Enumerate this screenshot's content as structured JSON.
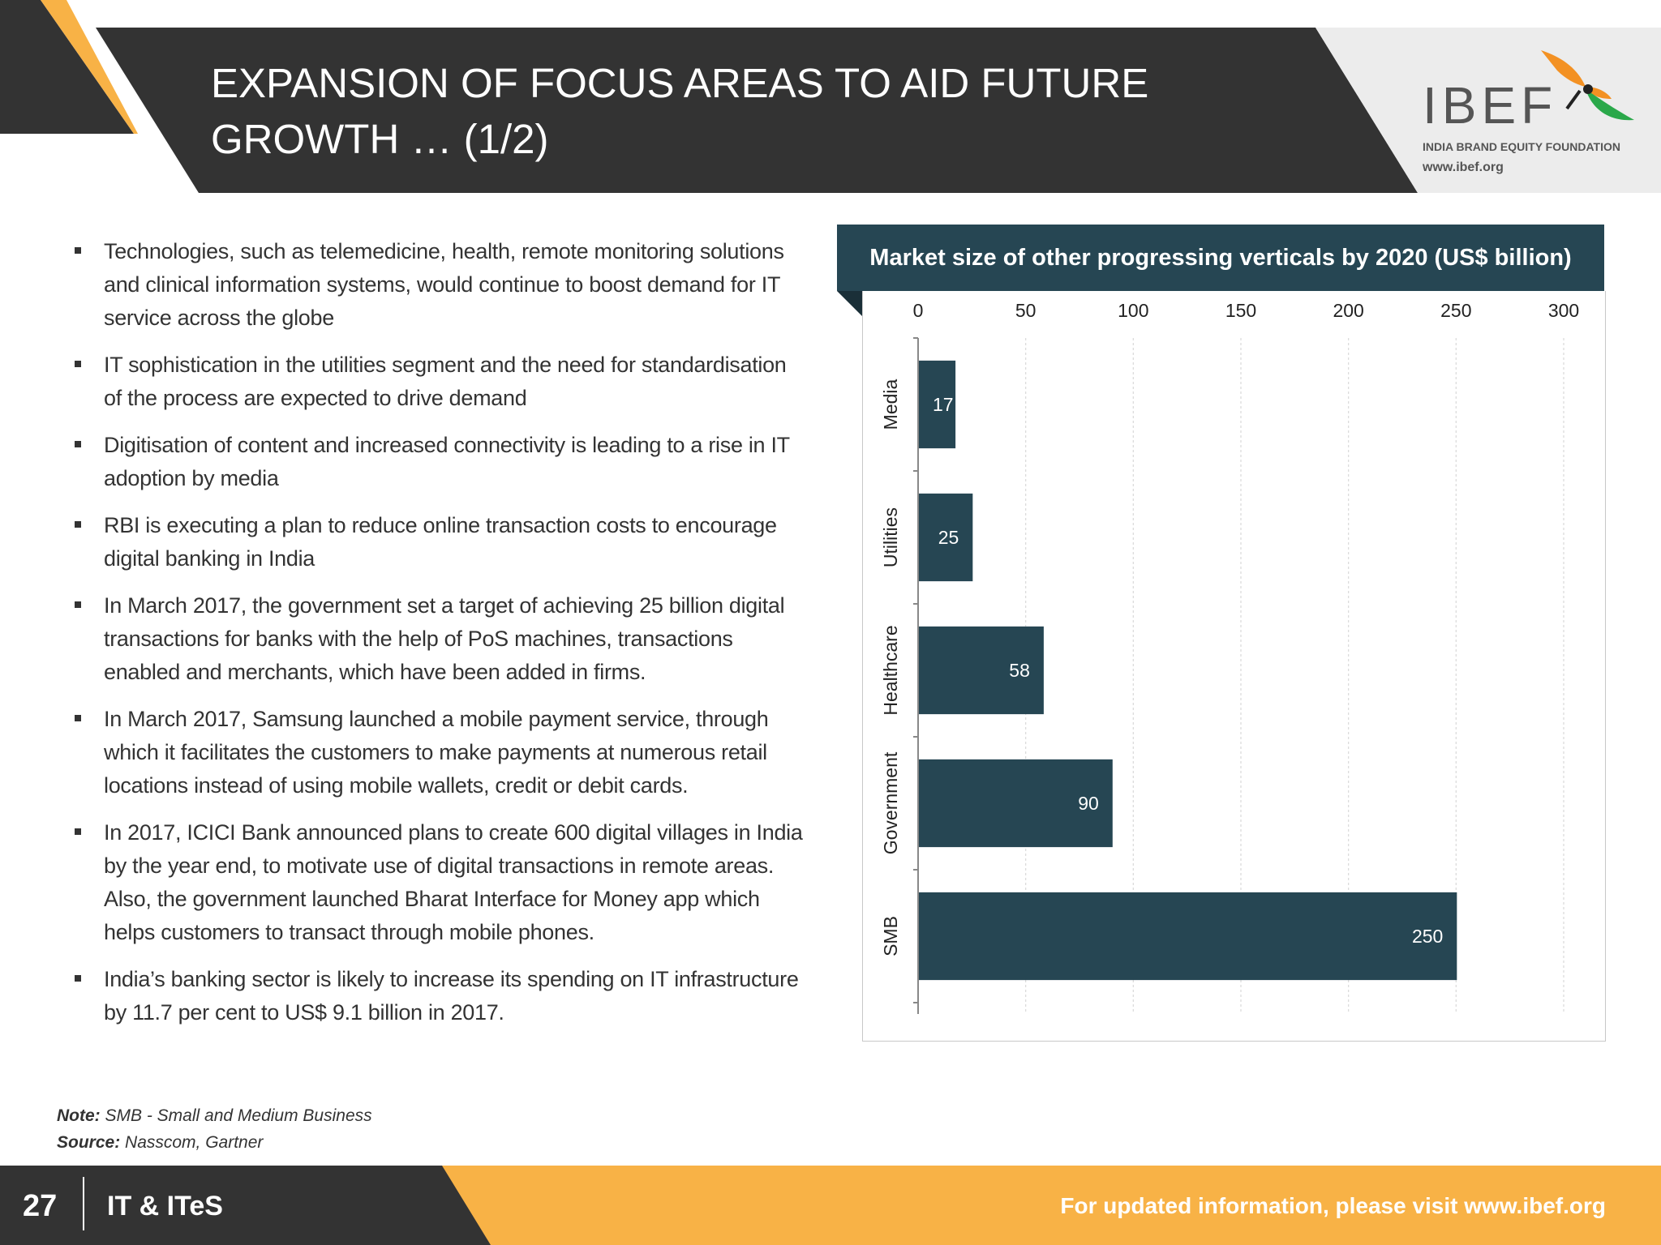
{
  "header": {
    "title": "EXPANSION OF FOCUS AREAS TO AID FUTURE GROWTH … (1/2)"
  },
  "logo": {
    "name": "IBEF",
    "tagline": "INDIA BRAND EQUITY FOUNDATION",
    "url": "www.ibef.org"
  },
  "bullets": [
    "Technologies, such as telemedicine, health, remote monitoring solutions and clinical information systems, would continue to boost demand for IT service across the globe",
    "IT sophistication in the utilities segment and the need for standardisation of the process are expected to drive demand",
    "Digitisation of content and increased connectivity is leading to a rise in IT adoption by media",
    "RBI is executing a plan to reduce online transaction costs to encourage digital banking in India",
    "In March 2017, the government set a target of achieving 25 billion digital transactions for banks with the help of PoS machines, transactions enabled and merchants, which have been added in firms.",
    "In March 2017, Samsung launched a mobile payment service, through which it facilitates the customers to make payments at numerous retail locations instead of using mobile wallets, credit or debit cards.",
    "In 2017, ICICI Bank announced plans to create 600 digital villages in India by the year end, to motivate use of digital transactions in remote areas. Also, the government launched Bharat Interface for Money app which helps customers to transact through mobile phones.",
    "India’s banking sector is likely to increase its spending on IT infrastructure  by 11.7 per cent to US$ 9.1 billion in 2017."
  ],
  "chart_data": {
    "type": "bar",
    "orientation": "horizontal",
    "title": "Market size of other progressing verticals by 2020 (US$ billion)",
    "categories": [
      "Media",
      "Utilities",
      "Healthcare",
      "Government",
      "SMB"
    ],
    "values": [
      17,
      25,
      58,
      90,
      250
    ],
    "xlim": [
      0,
      300
    ],
    "xticks": [
      0,
      50,
      100,
      150,
      200,
      250,
      300
    ],
    "xaxis_position": "top",
    "grid": "vertical dashed",
    "bar_color": "#264653",
    "data_labels": true
  },
  "notes": {
    "note_label": "Note:",
    "note_text": " SMB - Small and Medium Business",
    "source_label": "Source:",
    "source_text": " Nasscom, Gartner"
  },
  "footer": {
    "page_number": "27",
    "section": "IT & ITeS",
    "link_text": "For updated information, please visit www.ibef.org"
  },
  "colors": {
    "dark": "#333333",
    "accent_orange": "#f8b246",
    "chart_teal": "#264653"
  }
}
